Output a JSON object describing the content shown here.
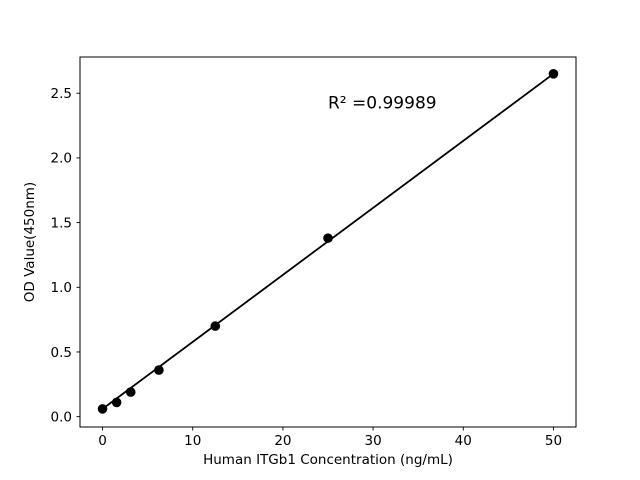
{
  "figure": {
    "background": "#ffffff",
    "foreground": "#000000"
  },
  "chart_data": {
    "type": "scatter",
    "title": "",
    "xlabel": "Human ITGb1 Concentration (ng/mL)",
    "ylabel": "OD Value(450nm)",
    "x": [
      0,
      1.5625,
      3.125,
      6.25,
      12.5,
      25,
      50
    ],
    "y": [
      0.06,
      0.11,
      0.19,
      0.36,
      0.7,
      1.38,
      2.65
    ],
    "fit_line": {
      "x1": 0,
      "y1": 0.06,
      "x2": 50,
      "y2": 2.65
    },
    "annotation": {
      "text": "R² =0.99989",
      "x": 25,
      "y": 2.43
    },
    "xlim": [
      -2.5,
      52.5
    ],
    "ylim": [
      -0.08,
      2.78
    ],
    "xticks": [
      0,
      10,
      20,
      30,
      40,
      50
    ],
    "yticks": [
      0.0,
      0.5,
      1.0,
      1.5,
      2.0,
      2.5
    ],
    "xtick_labels": [
      "0",
      "10",
      "20",
      "30",
      "40",
      "50"
    ],
    "ytick_labels": [
      "0.0",
      "0.5",
      "1.0",
      "1.5",
      "2.0",
      "2.5"
    ],
    "grid": false,
    "legend": "none",
    "marker_color": "#000000",
    "line_color": "#000000"
  }
}
